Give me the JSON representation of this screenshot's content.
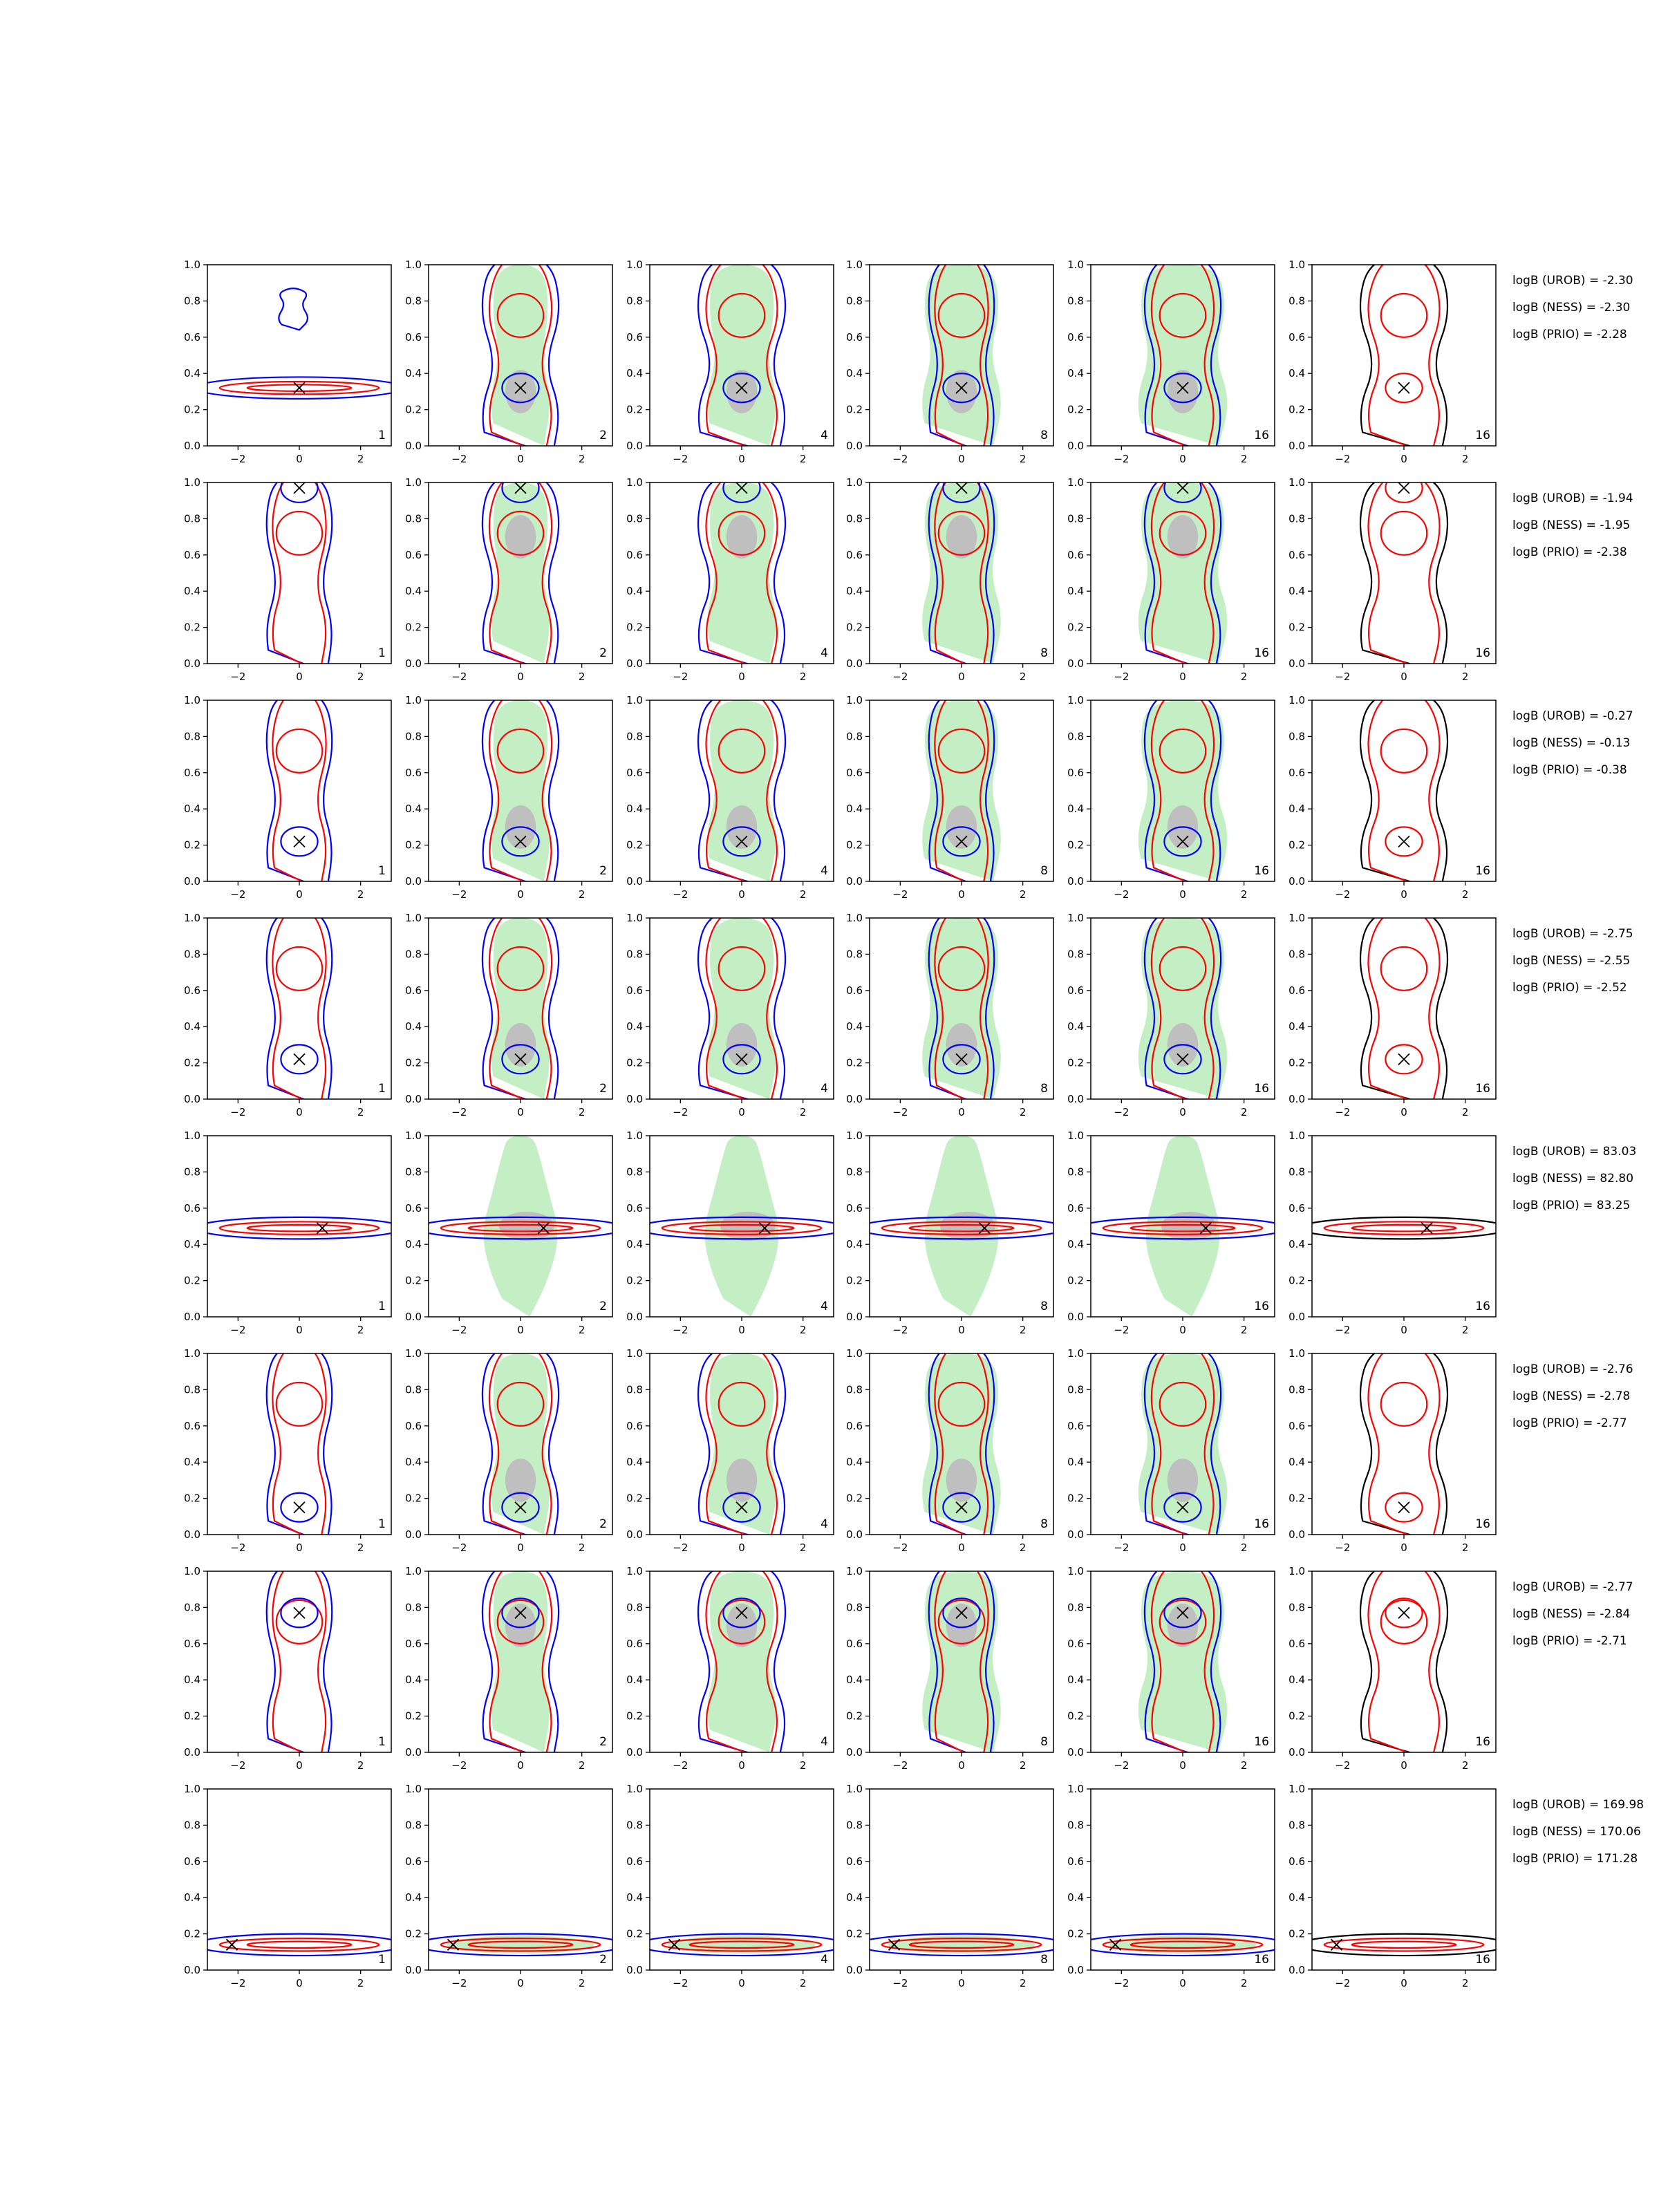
{
  "chart_data": {
    "type": "contour",
    "layout": {
      "rows": 8,
      "cols": 6
    },
    "xlim": [
      -3,
      3
    ],
    "ylim": [
      0,
      1
    ],
    "xticks": [
      -2,
      0,
      2
    ],
    "yticks": [
      0.0,
      0.2,
      0.4,
      0.6,
      0.8,
      1.0
    ],
    "xtick_labels": [
      "−2",
      "0",
      "2"
    ],
    "ytick_labels": [
      "0.0",
      "0.2",
      "0.4",
      "0.6",
      "0.8",
      "1.0"
    ],
    "panel_labels": [
      "1",
      "2",
      "4",
      "8",
      "16",
      "16"
    ],
    "colors": {
      "blue": "#0000ff",
      "red": "#ff0000",
      "black": "#000000",
      "green_fill": "#c4eec4",
      "grey_fill": "#bfbfbf"
    },
    "true_points": [
      {
        "x": 0.0,
        "y": 0.32
      },
      {
        "x": 0.0,
        "y": 0.97
      },
      {
        "x": 0.0,
        "y": 0.22
      },
      {
        "x": 0.0,
        "y": 0.22
      },
      {
        "x": 0.75,
        "y": 0.49
      },
      {
        "x": 0.0,
        "y": 0.15
      },
      {
        "x": 0.0,
        "y": 0.77
      },
      {
        "x": -2.2,
        "y": 0.14
      }
    ],
    "log_bayes": [
      [
        "logB (UROB) = -2.30",
        "logB (NESS) = -2.30",
        "logB (PRIO) = -2.28"
      ],
      [
        "logB (UROB) = -1.94",
        "logB (NESS) = -1.95",
        "logB (PRIO) = -2.38"
      ],
      [
        "logB (UROB) = -0.27",
        "logB (NESS) = -0.13",
        "logB (PRIO) = -0.38"
      ],
      [
        "logB (UROB) = -2.75",
        "logB (NESS) = -2.55",
        "logB (PRIO) = -2.52"
      ],
      [
        "logB (UROB) = 83.03",
        "logB (NESS) = 82.80",
        "logB (PRIO) = 83.25"
      ],
      [
        "logB (UROB) = -2.76",
        "logB (NESS) = -2.78",
        "logB (PRIO) = -2.77"
      ],
      [
        "logB (UROB) = -2.77",
        "logB (NESS) = -2.84",
        "logB (PRIO) = -2.71"
      ],
      [
        "logB (UROB) = 169.98",
        "logB (NESS) = 170.06",
        "logB (PRIO) = 171.28"
      ]
    ]
  }
}
